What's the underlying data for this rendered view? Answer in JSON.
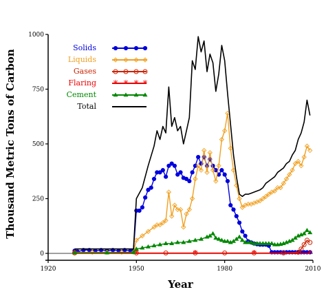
{
  "chart_data": {
    "type": "line",
    "title": "",
    "xlabel": "Year",
    "ylabel": "Thousand Metric Tons of Carbon",
    "xlim": [
      1920,
      2010
    ],
    "ylim": [
      0,
      1000
    ],
    "x_ticks": [
      1920,
      1950,
      1980,
      2010
    ],
    "x_tick_labels": [
      "1920",
      "1950",
      "1980",
      "2010"
    ],
    "y_ticks": [
      0,
      250,
      500,
      750,
      1000
    ],
    "y_tick_labels": [
      "0",
      "250",
      "500",
      "750",
      "1000"
    ],
    "legend_position": "top-left",
    "grid": false,
    "series": [
      {
        "name": "Solids",
        "color": "#0000dd",
        "marker": "filled-circle",
        "x": [
          1929,
          1930,
          1932,
          1934,
          1936,
          1938,
          1940,
          1942,
          1944,
          1946,
          1948,
          1949,
          1950,
          1951,
          1952,
          1953,
          1954,
          1955,
          1956,
          1957,
          1958,
          1959,
          1960,
          1961,
          1962,
          1963,
          1964,
          1965,
          1966,
          1967,
          1968,
          1969,
          1970,
          1971,
          1972,
          1973,
          1974,
          1975,
          1976,
          1977,
          1978,
          1979,
          1980,
          1981,
          1982,
          1983,
          1984,
          1985,
          1986,
          1987,
          1988,
          1989,
          1990,
          1991,
          1992,
          1993,
          1994,
          1995,
          1996,
          1997,
          1998,
          1999,
          2000,
          2001,
          2002,
          2003,
          2004,
          2005,
          2006,
          2007,
          2008,
          2009
        ],
        "y": [
          12,
          8,
          15,
          15,
          12,
          15,
          12,
          15,
          12,
          15,
          12,
          12,
          195,
          195,
          210,
          255,
          290,
          300,
          340,
          370,
          370,
          380,
          350,
          400,
          410,
          400,
          360,
          370,
          345,
          340,
          330,
          370,
          400,
          440,
          410,
          440,
          400,
          430,
          400,
          380,
          360,
          380,
          360,
          330,
          220,
          200,
          170,
          140,
          100,
          80,
          55,
          50,
          45,
          42,
          40,
          40,
          40,
          35,
          5,
          5,
          5,
          5,
          5,
          5,
          5,
          5,
          5,
          5,
          5,
          5,
          5,
          5
        ]
      },
      {
        "name": "Liquids",
        "color": "#f0a020",
        "marker": "open-diamond",
        "x": [
          1929,
          1935,
          1940,
          1945,
          1949,
          1950,
          1952,
          1954,
          1956,
          1957,
          1958,
          1959,
          1960,
          1961,
          1962,
          1963,
          1964,
          1965,
          1966,
          1967,
          1968,
          1969,
          1970,
          1971,
          1972,
          1973,
          1974,
          1975,
          1976,
          1977,
          1978,
          1979,
          1980,
          1981,
          1982,
          1983,
          1984,
          1985,
          1986,
          1987,
          1988,
          1989,
          1990,
          1991,
          1992,
          1993,
          1994,
          1995,
          1996,
          1997,
          1998,
          1999,
          2000,
          2001,
          2002,
          2003,
          2004,
          2005,
          2006,
          2007,
          2008,
          2009
        ],
        "y": [
          5,
          5,
          5,
          5,
          5,
          60,
          80,
          100,
          120,
          130,
          130,
          140,
          150,
          280,
          170,
          220,
          200,
          200,
          120,
          180,
          200,
          250,
          340,
          400,
          380,
          470,
          370,
          460,
          380,
          330,
          400,
          520,
          560,
          640,
          480,
          380,
          310,
          250,
          210,
          220,
          225,
          225,
          230,
          235,
          240,
          250,
          260,
          270,
          280,
          285,
          300,
          300,
          320,
          340,
          360,
          380,
          410,
          420,
          400,
          440,
          490,
          470
        ]
      },
      {
        "name": "Gases",
        "color": "#cc2200",
        "marker": "open-circle",
        "x": [
          1929,
          1950,
          1960,
          1970,
          1980,
          1990,
          2000,
          2005,
          2006,
          2007,
          2008,
          2009
        ],
        "y": [
          2,
          2,
          2,
          2,
          2,
          2,
          2,
          5,
          20,
          40,
          60,
          50
        ]
      },
      {
        "name": "Flaring",
        "color": "#ee0000",
        "marker": "asterisk",
        "x": [
          1929,
          1950,
          1970,
          1990,
          2009
        ],
        "y": [
          0,
          0,
          0,
          0,
          0
        ]
      },
      {
        "name": "Cement",
        "color": "#008800",
        "marker": "filled-triangle",
        "x": [
          1929,
          1940,
          1949,
          1950,
          1952,
          1954,
          1956,
          1958,
          1960,
          1962,
          1964,
          1966,
          1968,
          1970,
          1972,
          1974,
          1975,
          1976,
          1977,
          1978,
          1979,
          1980,
          1981,
          1982,
          1983,
          1984,
          1985,
          1986,
          1987,
          1988,
          1989,
          1990,
          1991,
          1992,
          1993,
          1994,
          1995,
          1996,
          1997,
          1998,
          1999,
          2000,
          2001,
          2002,
          2003,
          2004,
          2005,
          2006,
          2007,
          2008,
          2009
        ],
        "y": [
          3,
          3,
          5,
          20,
          25,
          30,
          35,
          40,
          45,
          45,
          50,
          50,
          55,
          60,
          65,
          75,
          80,
          90,
          70,
          65,
          60,
          55,
          55,
          50,
          55,
          65,
          75,
          60,
          50,
          50,
          50,
          45,
          45,
          45,
          45,
          45,
          45,
          45,
          40,
          40,
          42,
          45,
          50,
          55,
          60,
          70,
          80,
          85,
          90,
          105,
          95
        ]
      },
      {
        "name": "Total",
        "color": "#000000",
        "marker": "none",
        "x": [
          1929,
          1935,
          1940,
          1945,
          1949,
          1950,
          1952,
          1954,
          1956,
          1957,
          1958,
          1959,
          1960,
          1961,
          1962,
          1963,
          1964,
          1965,
          1966,
          1967,
          1968,
          1969,
          1970,
          1971,
          1972,
          1973,
          1974,
          1975,
          1976,
          1977,
          1978,
          1979,
          1980,
          1981,
          1982,
          1983,
          1984,
          1985,
          1986,
          1987,
          1988,
          1989,
          1990,
          1991,
          1992,
          1993,
          1994,
          1995,
          1996,
          1997,
          1998,
          1999,
          2000,
          2001,
          2002,
          2003,
          2004,
          2005,
          2006,
          2007,
          2008,
          2009
        ],
        "y": [
          20,
          20,
          20,
          20,
          20,
          250,
          300,
          400,
          490,
          560,
          520,
          580,
          550,
          760,
          580,
          620,
          560,
          580,
          500,
          560,
          620,
          880,
          840,
          990,
          920,
          970,
          830,
          910,
          870,
          740,
          820,
          950,
          880,
          730,
          590,
          450,
          350,
          270,
          260,
          270,
          270,
          275,
          280,
          285,
          290,
          300,
          320,
          330,
          340,
          350,
          370,
          380,
          390,
          410,
          420,
          450,
          470,
          520,
          550,
          600,
          700,
          630
        ]
      }
    ]
  }
}
